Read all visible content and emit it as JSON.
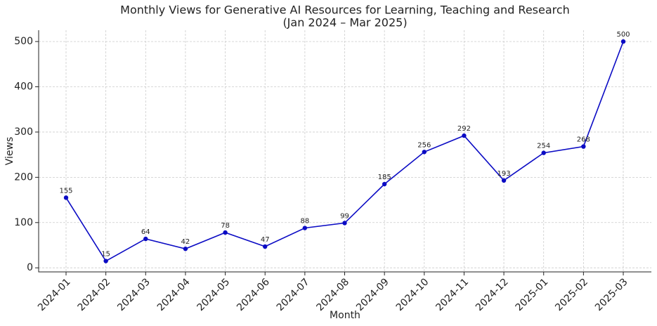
{
  "chart_data": {
    "type": "line",
    "title": "Monthly Views for Generative AI Resources for Learning, Teaching and Research",
    "subtitle": "(Jan 2024 – Mar 2025)",
    "x_label": "Month",
    "y_label": "Views",
    "categories": [
      "2024-01",
      "2024-02",
      "2024-03",
      "2024-04",
      "2024-05",
      "2024-06",
      "2024-07",
      "2024-08",
      "2024-09",
      "2024-10",
      "2024-11",
      "2024-12",
      "2025-01",
      "2025-02",
      "2025-03"
    ],
    "values": [
      155,
      15,
      64,
      42,
      78,
      47,
      88,
      99,
      185,
      256,
      292,
      193,
      254,
      268,
      500
    ],
    "color": "#0b0bc4",
    "ylim": [
      -9,
      525
    ],
    "yticks": [
      0,
      100,
      200,
      300,
      400,
      500
    ],
    "grid": true
  }
}
